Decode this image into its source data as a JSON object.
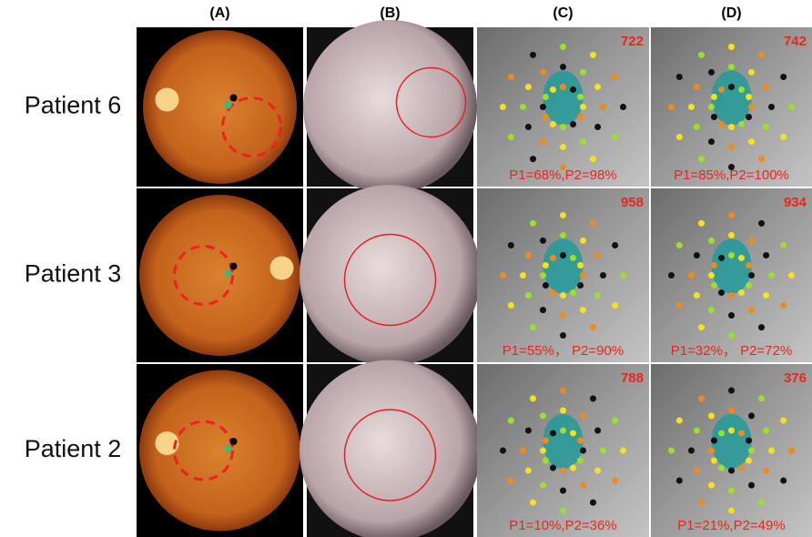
{
  "columns": [
    "(A)",
    "(B)",
    "(C)",
    "(D)"
  ],
  "rows": [
    {
      "label": "Patient 6",
      "c_score": "722",
      "c_p": "P1=68%,P2=98%",
      "d_score": "742",
      "d_p": "P1=85%,P2=100%"
    },
    {
      "label": "Patient 3",
      "c_score": "958",
      "c_p": "P1=55%， P2=90%",
      "d_score": "934",
      "d_p": "P1=32%， P2=72%"
    },
    {
      "label": "Patient 2",
      "c_score": "788",
      "c_p": "P1=10%,P2=36%",
      "d_score": "376",
      "d_p": "P1=21%,P2=49%"
    }
  ]
}
